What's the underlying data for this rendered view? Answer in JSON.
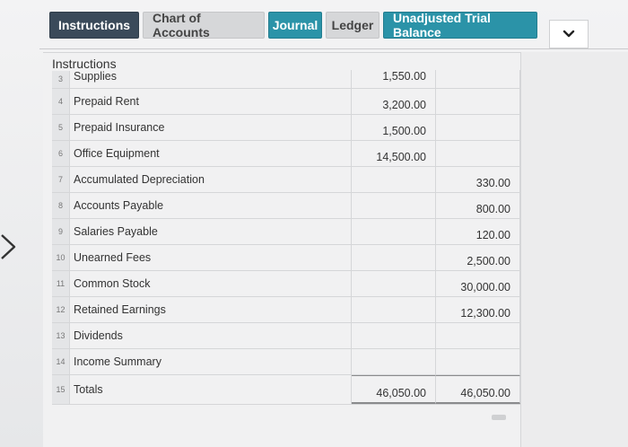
{
  "tabs": [
    {
      "label": "Instructions",
      "key": "instructions"
    },
    {
      "label": "Chart of Accounts",
      "key": "chart"
    },
    {
      "label": "Journal",
      "key": "journal"
    },
    {
      "label": "Ledger",
      "key": "ledger"
    },
    {
      "label": "Unadjusted Trial Balance",
      "key": "trial"
    }
  ],
  "panel": {
    "title": "Instructions"
  },
  "rows": [
    {
      "num": "3",
      "name": "Supplies",
      "debit": "1,550.00",
      "credit": ""
    },
    {
      "num": "4",
      "name": "Prepaid Rent",
      "debit": "3,200.00",
      "credit": ""
    },
    {
      "num": "5",
      "name": "Prepaid Insurance",
      "debit": "1,500.00",
      "credit": ""
    },
    {
      "num": "6",
      "name": "Office Equipment",
      "debit": "14,500.00",
      "credit": ""
    },
    {
      "num": "7",
      "name": "Accumulated Depreciation",
      "debit": "",
      "credit": "330.00"
    },
    {
      "num": "8",
      "name": "Accounts Payable",
      "debit": "",
      "credit": "800.00"
    },
    {
      "num": "9",
      "name": "Salaries Payable",
      "debit": "",
      "credit": "120.00"
    },
    {
      "num": "10",
      "name": "Unearned Fees",
      "debit": "",
      "credit": "2,500.00"
    },
    {
      "num": "11",
      "name": "Common Stock",
      "debit": "",
      "credit": "30,000.00"
    },
    {
      "num": "12",
      "name": "Retained Earnings",
      "debit": "",
      "credit": "12,300.00"
    },
    {
      "num": "13",
      "name": "Dividends",
      "debit": "",
      "credit": ""
    },
    {
      "num": "14",
      "name": "Income Summary",
      "debit": "",
      "credit": ""
    },
    {
      "num": "15",
      "name": "Totals",
      "debit": "46,050.00",
      "credit": "46,050.00"
    }
  ],
  "icons": {
    "dropdown": "chevron-down-icon",
    "side": "chevron-right-icon"
  },
  "colors": {
    "active_tab": "#3a4a5a",
    "teal_tab": "#2b93a8"
  }
}
